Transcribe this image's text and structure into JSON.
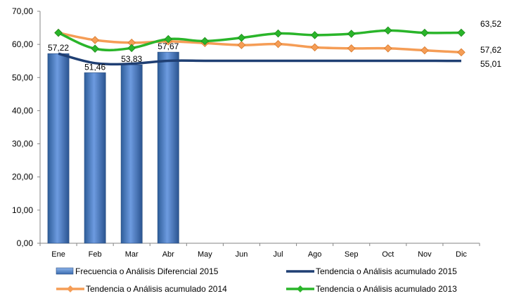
{
  "chart_data": {
    "type": "bar",
    "categories": [
      "Ene",
      "Feb",
      "Mar",
      "Abr",
      "May",
      "Jun",
      "Jul",
      "Ago",
      "Sep",
      "Oct",
      "Nov",
      "Dic"
    ],
    "ylim": [
      0,
      70
    ],
    "yticks": [
      "0,00",
      "10,00",
      "20,00",
      "30,00",
      "40,00",
      "50,00",
      "60,00",
      "70,00"
    ],
    "grid": false,
    "legend_position": "bottom",
    "series": [
      {
        "name": "Frecuencia o Análisis Diferencial 2015",
        "kind": "bar",
        "color": "#4a7ebb",
        "values": [
          57.22,
          51.46,
          53.83,
          57.67,
          null,
          null,
          null,
          null,
          null,
          null,
          null,
          null
        ],
        "labels": [
          "57,22",
          "51,46",
          "53,83",
          "57,67"
        ]
      },
      {
        "name": "Tendencia o Análisis acumulado 2015",
        "kind": "line",
        "color": "#1f3f73",
        "values": [
          57.22,
          54.34,
          54.17,
          55.05,
          55.05,
          55.05,
          55.05,
          55.05,
          55.05,
          55.05,
          55.05,
          55.01
        ],
        "end_label": "55,01"
      },
      {
        "name": "Tendencia o Análisis acumulado 2014",
        "kind": "line",
        "color": "#f59d56",
        "values": [
          63.5,
          61.3,
          60.5,
          60.9,
          60.4,
          59.8,
          60.1,
          59.1,
          58.8,
          58.8,
          58.2,
          57.62
        ],
        "end_label": "57,62"
      },
      {
        "name": "Tendencia o Análisis acumulado 2013",
        "kind": "line",
        "color": "#2ab52a",
        "values": [
          63.5,
          58.7,
          58.9,
          61.6,
          61.0,
          62.0,
          63.3,
          62.8,
          63.2,
          64.2,
          63.5,
          63.52
        ],
        "end_label": "63,52"
      }
    ]
  }
}
